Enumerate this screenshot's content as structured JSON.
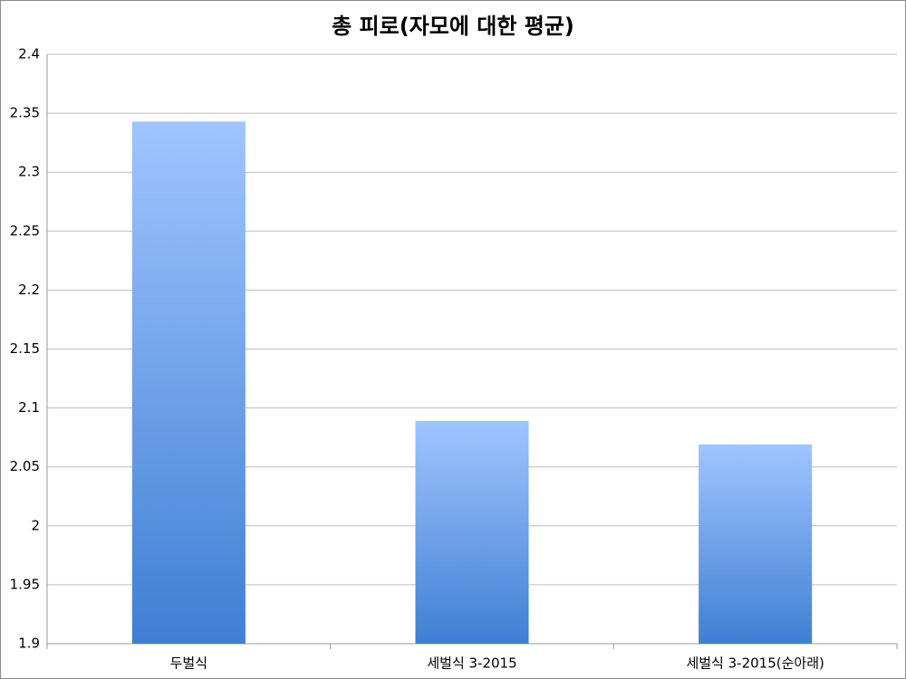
{
  "chart_data": {
    "type": "bar",
    "title": "총 피로(자모에 대한 평균)",
    "categories": [
      "두벌식",
      "세벌식 3-2015",
      "세벌식 3-2015(순아래)"
    ],
    "values": [
      2.343,
      2.089,
      2.069
    ],
    "color": "#3f7fd3",
    "ylim": [
      1.9,
      2.4
    ],
    "yticks": [
      1.9,
      1.95,
      2,
      2.05,
      2.1,
      2.15,
      2.2,
      2.25,
      2.3,
      2.35,
      2.4
    ],
    "grid": true
  }
}
